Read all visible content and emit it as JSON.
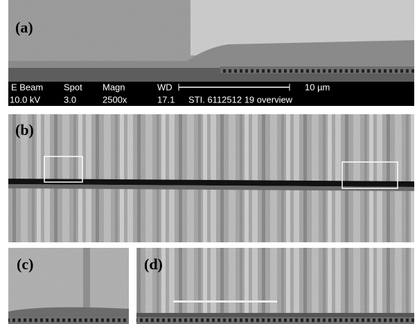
{
  "panels": [
    {
      "label": "(a)"
    },
    {
      "label": "(b)"
    },
    {
      "label": "(c)"
    },
    {
      "label": "(d)"
    }
  ],
  "info_bar": {
    "headers": [
      "E Beam",
      "Spot",
      "Magn",
      "WD"
    ],
    "values": [
      "10.0 kV",
      "3.0",
      "2500x",
      "17.1",
      "STI. 6112512 19 overview"
    ],
    "scale": "10 µm"
  }
}
